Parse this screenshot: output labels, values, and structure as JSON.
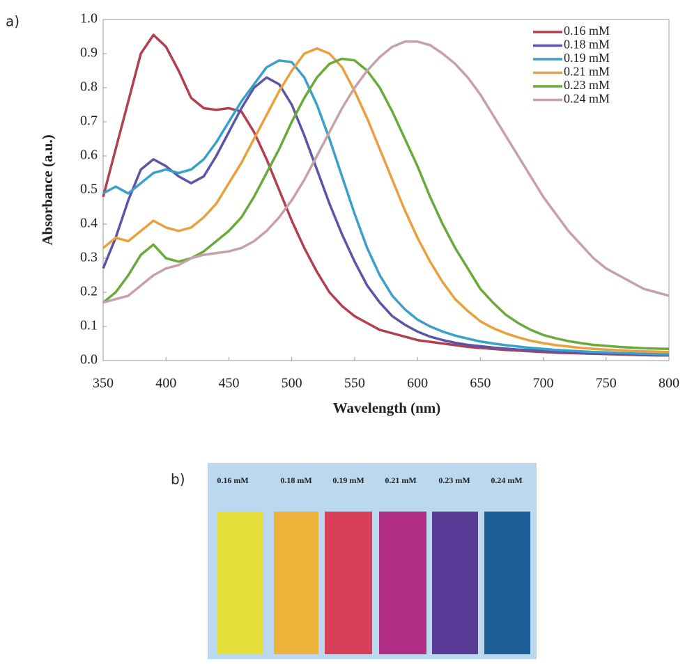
{
  "chart_data": {
    "type": "line",
    "xlabel": "Wavelength (nm)",
    "ylabel": "Absorbance (a.u.)",
    "x": [
      350,
      360,
      370,
      380,
      390,
      400,
      410,
      420,
      430,
      440,
      450,
      460,
      470,
      480,
      490,
      500,
      510,
      520,
      530,
      540,
      550,
      560,
      570,
      580,
      590,
      600,
      610,
      620,
      630,
      640,
      650,
      660,
      670,
      680,
      690,
      700,
      710,
      720,
      730,
      740,
      750,
      760,
      770,
      780,
      790,
      800
    ],
    "xlim": [
      350,
      800
    ],
    "xticks": [
      350,
      400,
      450,
      500,
      550,
      600,
      650,
      700,
      750,
      800
    ],
    "ylim": [
      0,
      1
    ],
    "yticks": [
      {
        "value": 0,
        "label": "0.0"
      },
      0.1,
      0.2,
      0.3,
      0.4,
      0.5,
      0.6,
      0.7,
      0.8,
      0.9,
      {
        "value": 1,
        "label": "1.0"
      }
    ],
    "grid": false,
    "legend": "upper right",
    "series": [
      {
        "name": "0.16 mM",
        "color": "#b0404f",
        "values": [
          0.48,
          0.62,
          0.76,
          0.9,
          0.955,
          0.92,
          0.85,
          0.77,
          0.74,
          0.735,
          0.74,
          0.73,
          0.67,
          0.59,
          0.5,
          0.41,
          0.33,
          0.26,
          0.2,
          0.16,
          0.13,
          0.11,
          0.09,
          0.08,
          0.07,
          0.06,
          0.055,
          0.05,
          0.045,
          0.04,
          0.037,
          0.034,
          0.031,
          0.029,
          0.027,
          0.025,
          0.023,
          0.022,
          0.021,
          0.02,
          0.019,
          0.018,
          0.017,
          0.016,
          0.015,
          0.015
        ]
      },
      {
        "name": "0.18 mM",
        "color": "#5b55a8",
        "values": [
          0.27,
          0.36,
          0.47,
          0.56,
          0.59,
          0.57,
          0.54,
          0.52,
          0.54,
          0.6,
          0.67,
          0.74,
          0.8,
          0.83,
          0.81,
          0.75,
          0.66,
          0.56,
          0.46,
          0.37,
          0.29,
          0.22,
          0.17,
          0.13,
          0.105,
          0.085,
          0.07,
          0.06,
          0.052,
          0.046,
          0.042,
          0.038,
          0.035,
          0.032,
          0.03,
          0.028,
          0.026,
          0.024,
          0.023,
          0.022,
          0.021,
          0.02,
          0.019,
          0.018,
          0.018,
          0.017
        ]
      },
      {
        "name": "0.19 mM",
        "color": "#3aa0c8",
        "values": [
          0.49,
          0.51,
          0.49,
          0.52,
          0.55,
          0.56,
          0.55,
          0.56,
          0.59,
          0.64,
          0.7,
          0.76,
          0.81,
          0.86,
          0.88,
          0.875,
          0.83,
          0.75,
          0.65,
          0.54,
          0.43,
          0.33,
          0.25,
          0.19,
          0.15,
          0.12,
          0.1,
          0.085,
          0.073,
          0.064,
          0.056,
          0.05,
          0.045,
          0.041,
          0.037,
          0.034,
          0.031,
          0.029,
          0.027,
          0.025,
          0.024,
          0.022,
          0.021,
          0.02,
          0.019,
          0.018
        ]
      },
      {
        "name": "0.21 mM",
        "color": "#e8a040",
        "values": [
          0.33,
          0.36,
          0.35,
          0.38,
          0.41,
          0.39,
          0.38,
          0.39,
          0.42,
          0.46,
          0.52,
          0.58,
          0.65,
          0.72,
          0.79,
          0.85,
          0.9,
          0.915,
          0.9,
          0.86,
          0.79,
          0.71,
          0.62,
          0.53,
          0.44,
          0.36,
          0.29,
          0.23,
          0.18,
          0.145,
          0.115,
          0.095,
          0.08,
          0.068,
          0.058,
          0.051,
          0.045,
          0.041,
          0.037,
          0.034,
          0.032,
          0.03,
          0.028,
          0.027,
          0.026,
          0.025
        ]
      },
      {
        "name": "0.23 mM",
        "color": "#6aaa3a",
        "values": [
          0.17,
          0.2,
          0.25,
          0.31,
          0.34,
          0.3,
          0.29,
          0.3,
          0.32,
          0.35,
          0.38,
          0.42,
          0.48,
          0.55,
          0.62,
          0.7,
          0.77,
          0.83,
          0.87,
          0.885,
          0.88,
          0.85,
          0.8,
          0.73,
          0.65,
          0.57,
          0.48,
          0.4,
          0.33,
          0.27,
          0.21,
          0.17,
          0.135,
          0.11,
          0.09,
          0.075,
          0.065,
          0.057,
          0.051,
          0.046,
          0.043,
          0.04,
          0.038,
          0.036,
          0.035,
          0.034
        ]
      },
      {
        "name": "0.24 mM",
        "color": "#c8a0a8",
        "values": [
          0.17,
          0.18,
          0.19,
          0.22,
          0.25,
          0.27,
          0.28,
          0.3,
          0.31,
          0.315,
          0.32,
          0.33,
          0.35,
          0.38,
          0.42,
          0.47,
          0.53,
          0.6,
          0.67,
          0.74,
          0.8,
          0.85,
          0.89,
          0.92,
          0.935,
          0.935,
          0.925,
          0.9,
          0.87,
          0.83,
          0.78,
          0.72,
          0.66,
          0.6,
          0.54,
          0.48,
          0.43,
          0.38,
          0.34,
          0.3,
          0.27,
          0.25,
          0.23,
          0.21,
          0.2,
          0.19
        ]
      }
    ]
  },
  "panel_labels": {
    "a": "a)",
    "b": "b)"
  },
  "photo": {
    "labels": [
      "0.16  mM",
      "0.18  mM",
      "0.19  mM",
      "0.21 mM",
      "0.23 mM",
      "0.24 mM"
    ]
  }
}
